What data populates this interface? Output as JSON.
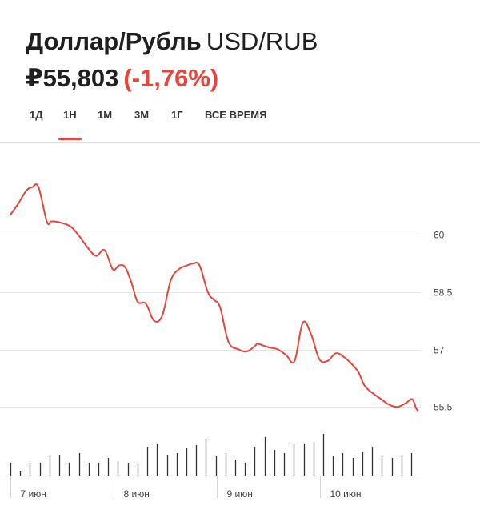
{
  "header": {
    "name": "Доллар/Рубль",
    "ticker": "USD/RUB",
    "price": "₽55,803",
    "change": "(-1,76%)"
  },
  "tabs": [
    {
      "label": "1Д",
      "active": false
    },
    {
      "label": "1Н",
      "active": true
    },
    {
      "label": "1М",
      "active": false
    },
    {
      "label": "3М",
      "active": false
    },
    {
      "label": "1Г",
      "active": false
    },
    {
      "label": "ВСЕ ВРЕМЯ",
      "active": false
    }
  ],
  "colors": {
    "line": "#e8443a",
    "negative": "#e8443a",
    "grid": "#e6e6e6",
    "volume": "#333333",
    "axis_text": "#444444"
  },
  "chart_data": {
    "type": "line",
    "title": "",
    "xlabel": "",
    "ylabel": "",
    "ylim": [
      55.0,
      62.5
    ],
    "y_ticks": [
      60,
      58.5,
      57,
      55.5
    ],
    "y_tick_labels": [
      "60",
      "58.5",
      "57",
      "55.5"
    ],
    "y_axis_position": "right",
    "grid": true,
    "x_tick_labels": [
      "7 июн",
      "8 июн",
      "9 июн",
      "10 июн"
    ],
    "x_tick_positions": [
      0.0,
      0.25,
      0.5,
      0.75
    ],
    "x_range": [
      0.0,
      0.99
    ],
    "series": [
      {
        "x": [
          0.0,
          0.02,
          0.04,
          0.055,
          0.07,
          0.09,
          0.1,
          0.11,
          0.13,
          0.15,
          0.17,
          0.19,
          0.21,
          0.23,
          0.25,
          0.265,
          0.28,
          0.295,
          0.31,
          0.33,
          0.35,
          0.37,
          0.39,
          0.41,
          0.43,
          0.445,
          0.46,
          0.48,
          0.495,
          0.51,
          0.53,
          0.555,
          0.575,
          0.595,
          0.6,
          0.615,
          0.63,
          0.65,
          0.67,
          0.69,
          0.71,
          0.73,
          0.75,
          0.77,
          0.79,
          0.81,
          0.83,
          0.845,
          0.86,
          0.88,
          0.9,
          0.92,
          0.94,
          0.96,
          0.975,
          0.985,
          0.99
        ],
        "y": [
          60.5,
          60.8,
          61.15,
          61.25,
          61.25,
          60.35,
          60.35,
          60.35,
          60.3,
          60.2,
          59.95,
          59.65,
          59.45,
          59.6,
          59.1,
          59.2,
          59.15,
          58.75,
          58.25,
          58.2,
          57.75,
          57.9,
          58.8,
          59.1,
          59.2,
          59.25,
          59.2,
          58.5,
          58.3,
          58.1,
          57.2,
          57.0,
          56.95,
          57.1,
          57.15,
          57.1,
          57.05,
          57.0,
          56.85,
          56.7,
          57.7,
          57.4,
          56.75,
          56.7,
          56.9,
          56.8,
          56.6,
          56.4,
          56.05,
          55.85,
          55.7,
          55.55,
          55.5,
          55.6,
          55.7,
          55.45,
          55.4
        ]
      }
    ],
    "volume": [
      8,
      3,
      8,
      8,
      12,
      13,
      8,
      14,
      8,
      8,
      11,
      9,
      8,
      7,
      18,
      20,
      13,
      14,
      17,
      19,
      23,
      12,
      14,
      10,
      8,
      18,
      24,
      16,
      14,
      20,
      20,
      21,
      26,
      12,
      14,
      11,
      15,
      18,
      12,
      11,
      12,
      14
    ]
  }
}
